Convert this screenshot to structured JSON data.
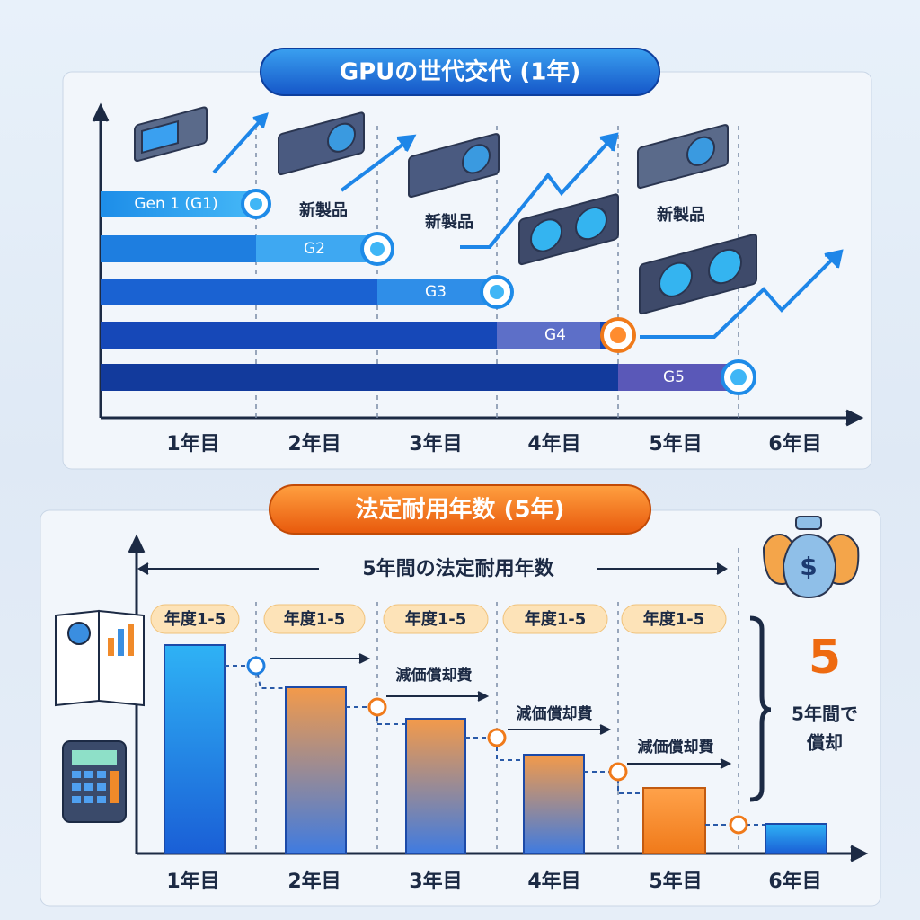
{
  "top": {
    "title": "GPUの世代交代 (1年)",
    "generations": [
      "Gen 1 (G1)",
      "G2",
      "G3",
      "G4",
      "G5"
    ],
    "new_product_labels": [
      "新製品",
      "新製品",
      "新製品"
    ],
    "years": [
      "1年目",
      "2年目",
      "3年目",
      "4年目",
      "5年目",
      "6年目"
    ]
  },
  "bottom": {
    "title": "法定耐用年数 (5年)",
    "span_label": "5年間の法定耐用年数",
    "period_labels": [
      "年度1-5",
      "年度1-5",
      "年度1-5",
      "年度1-5",
      "年度1-5"
    ],
    "expense_labels": [
      "減価償却費",
      "減価償却費",
      "減価償却費"
    ],
    "big_number": 5,
    "note": [
      "5年間で",
      "償却"
    ],
    "years": [
      "1年目",
      "2年目",
      "3年目",
      "4年目",
      "5年目",
      "6年目"
    ]
  }
}
